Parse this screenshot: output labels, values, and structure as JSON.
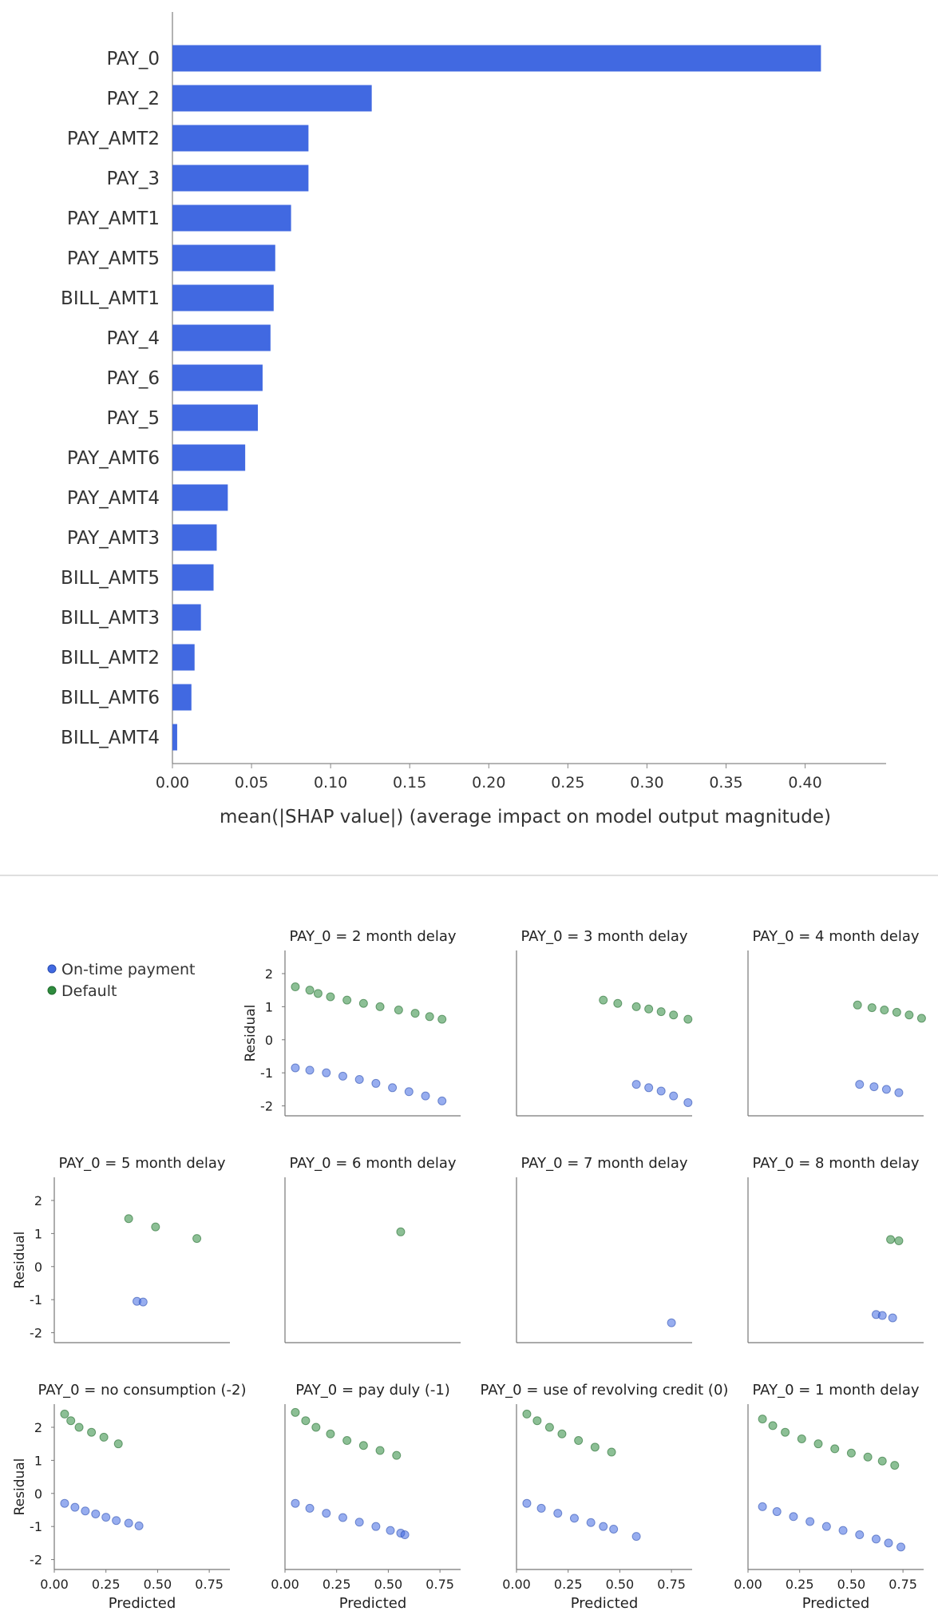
{
  "chart_data": [
    {
      "type": "bar",
      "orientation": "horizontal",
      "xlabel": "mean(|SHAP value|) (average impact on model output magnitude)",
      "xlim": [
        0,
        0.43
      ],
      "xticks": [
        "0.00",
        "0.05",
        "0.10",
        "0.15",
        "0.20",
        "0.25",
        "0.30",
        "0.35",
        "0.40"
      ],
      "color": "#4169e1",
      "categories": [
        "PAY_0",
        "PAY_2",
        "PAY_AMT2",
        "PAY_3",
        "PAY_AMT1",
        "PAY_AMT5",
        "BILL_AMT1",
        "PAY_4",
        "PAY_6",
        "PAY_5",
        "PAY_AMT6",
        "PAY_AMT4",
        "PAY_AMT3",
        "BILL_AMT5",
        "BILL_AMT3",
        "BILL_AMT2",
        "BILL_AMT6",
        "BILL_AMT4"
      ],
      "values": [
        0.41,
        0.126,
        0.086,
        0.086,
        0.075,
        0.065,
        0.064,
        0.062,
        0.057,
        0.054,
        0.046,
        0.035,
        0.028,
        0.026,
        0.018,
        0.014,
        0.012,
        0.003
      ]
    },
    {
      "type": "scatter",
      "facet_title_prefix": "PAY_0 = ",
      "ylabel": "Residual",
      "xlabel": "Predicted",
      "xlim": [
        0,
        0.85
      ],
      "ylim": [
        -2.3,
        2.7
      ],
      "xticks": [
        "0.00",
        "0.25",
        "0.50",
        "0.75"
      ],
      "yticks": [
        "2",
        "1",
        "0",
        "-1",
        "-2"
      ],
      "legend": {
        "placement": "top-left",
        "entries": [
          {
            "label": "On-time payment",
            "color": "#4169e1"
          },
          {
            "label": "Default",
            "color": "#2e8b3e"
          }
        ]
      },
      "facets": [
        {
          "title": "2 month delay",
          "green": [
            [
              0.05,
              1.6
            ],
            [
              0.12,
              1.5
            ],
            [
              0.16,
              1.4
            ],
            [
              0.22,
              1.3
            ],
            [
              0.3,
              1.2
            ],
            [
              0.38,
              1.1
            ],
            [
              0.46,
              1.0
            ],
            [
              0.55,
              0.9
            ],
            [
              0.63,
              0.8
            ],
            [
              0.7,
              0.7
            ],
            [
              0.76,
              0.62
            ]
          ],
          "blue": [
            [
              0.05,
              -0.85
            ],
            [
              0.12,
              -0.92
            ],
            [
              0.2,
              -1.0
            ],
            [
              0.28,
              -1.1
            ],
            [
              0.36,
              -1.2
            ],
            [
              0.44,
              -1.32
            ],
            [
              0.52,
              -1.45
            ],
            [
              0.6,
              -1.57
            ],
            [
              0.68,
              -1.7
            ],
            [
              0.76,
              -1.85
            ]
          ]
        },
        {
          "title": "3 month delay",
          "green": [
            [
              0.42,
              1.2
            ],
            [
              0.49,
              1.1
            ],
            [
              0.58,
              1.0
            ],
            [
              0.64,
              0.93
            ],
            [
              0.7,
              0.85
            ],
            [
              0.76,
              0.75
            ],
            [
              0.83,
              0.62
            ]
          ],
          "blue": [
            [
              0.58,
              -1.35
            ],
            [
              0.64,
              -1.45
            ],
            [
              0.7,
              -1.55
            ],
            [
              0.76,
              -1.7
            ],
            [
              0.83,
              -1.9
            ]
          ]
        },
        {
          "title": "4 month delay",
          "green": [
            [
              0.53,
              1.05
            ],
            [
              0.6,
              0.97
            ],
            [
              0.66,
              0.9
            ],
            [
              0.72,
              0.83
            ],
            [
              0.78,
              0.75
            ],
            [
              0.84,
              0.65
            ]
          ],
          "blue": [
            [
              0.54,
              -1.35
            ],
            [
              0.61,
              -1.42
            ],
            [
              0.67,
              -1.5
            ],
            [
              0.73,
              -1.6
            ]
          ]
        },
        {
          "title": "5 month delay",
          "green": [
            [
              0.36,
              1.45
            ],
            [
              0.49,
              1.2
            ],
            [
              0.69,
              0.85
            ]
          ],
          "blue": [
            [
              0.4,
              -1.05
            ],
            [
              0.43,
              -1.07
            ]
          ]
        },
        {
          "title": "6 month delay",
          "green": [
            [
              0.56,
              1.05
            ]
          ],
          "blue": []
        },
        {
          "title": "7 month delay",
          "green": [],
          "blue": [
            [
              0.75,
              -1.7
            ]
          ]
        },
        {
          "title": "8 month delay",
          "green": [
            [
              0.69,
              0.82
            ],
            [
              0.73,
              0.78
            ]
          ],
          "blue": [
            [
              0.62,
              -1.45
            ],
            [
              0.65,
              -1.48
            ],
            [
              0.7,
              -1.55
            ]
          ]
        },
        {
          "title": "no consumption (-2)",
          "green": [
            [
              0.05,
              2.4
            ],
            [
              0.08,
              2.2
            ],
            [
              0.12,
              2.0
            ],
            [
              0.18,
              1.85
            ],
            [
              0.24,
              1.7
            ],
            [
              0.31,
              1.5
            ]
          ],
          "blue": [
            [
              0.05,
              -0.3
            ],
            [
              0.1,
              -0.42
            ],
            [
              0.15,
              -0.53
            ],
            [
              0.2,
              -0.62
            ],
            [
              0.25,
              -0.72
            ],
            [
              0.3,
              -0.82
            ],
            [
              0.36,
              -0.9
            ],
            [
              0.41,
              -0.98
            ]
          ]
        },
        {
          "title": "pay duly (-1)",
          "green": [
            [
              0.05,
              2.45
            ],
            [
              0.1,
              2.2
            ],
            [
              0.15,
              2.0
            ],
            [
              0.22,
              1.8
            ],
            [
              0.3,
              1.6
            ],
            [
              0.38,
              1.45
            ],
            [
              0.46,
              1.3
            ],
            [
              0.54,
              1.15
            ]
          ],
          "blue": [
            [
              0.05,
              -0.3
            ],
            [
              0.12,
              -0.45
            ],
            [
              0.2,
              -0.6
            ],
            [
              0.28,
              -0.73
            ],
            [
              0.36,
              -0.87
            ],
            [
              0.44,
              -1.0
            ],
            [
              0.51,
              -1.12
            ],
            [
              0.56,
              -1.2
            ],
            [
              0.58,
              -1.25
            ]
          ]
        },
        {
          "title": "use of revolving credit (0)",
          "green": [
            [
              0.05,
              2.4
            ],
            [
              0.1,
              2.2
            ],
            [
              0.16,
              2.0
            ],
            [
              0.22,
              1.8
            ],
            [
              0.3,
              1.6
            ],
            [
              0.38,
              1.4
            ],
            [
              0.46,
              1.25
            ]
          ],
          "blue": [
            [
              0.05,
              -0.3
            ],
            [
              0.12,
              -0.45
            ],
            [
              0.2,
              -0.6
            ],
            [
              0.28,
              -0.75
            ],
            [
              0.36,
              -0.88
            ],
            [
              0.42,
              -1.0
            ],
            [
              0.47,
              -1.08
            ],
            [
              0.58,
              -1.3
            ]
          ]
        },
        {
          "title": "1 month delay",
          "green": [
            [
              0.07,
              2.25
            ],
            [
              0.12,
              2.05
            ],
            [
              0.18,
              1.85
            ],
            [
              0.26,
              1.65
            ],
            [
              0.34,
              1.5
            ],
            [
              0.42,
              1.35
            ],
            [
              0.5,
              1.22
            ],
            [
              0.58,
              1.1
            ],
            [
              0.65,
              0.98
            ],
            [
              0.71,
              0.85
            ]
          ],
          "blue": [
            [
              0.07,
              -0.4
            ],
            [
              0.14,
              -0.55
            ],
            [
              0.22,
              -0.7
            ],
            [
              0.3,
              -0.85
            ],
            [
              0.38,
              -1.0
            ],
            [
              0.46,
              -1.12
            ],
            [
              0.54,
              -1.25
            ],
            [
              0.62,
              -1.38
            ],
            [
              0.68,
              -1.5
            ],
            [
              0.74,
              -1.62
            ]
          ]
        }
      ]
    }
  ]
}
